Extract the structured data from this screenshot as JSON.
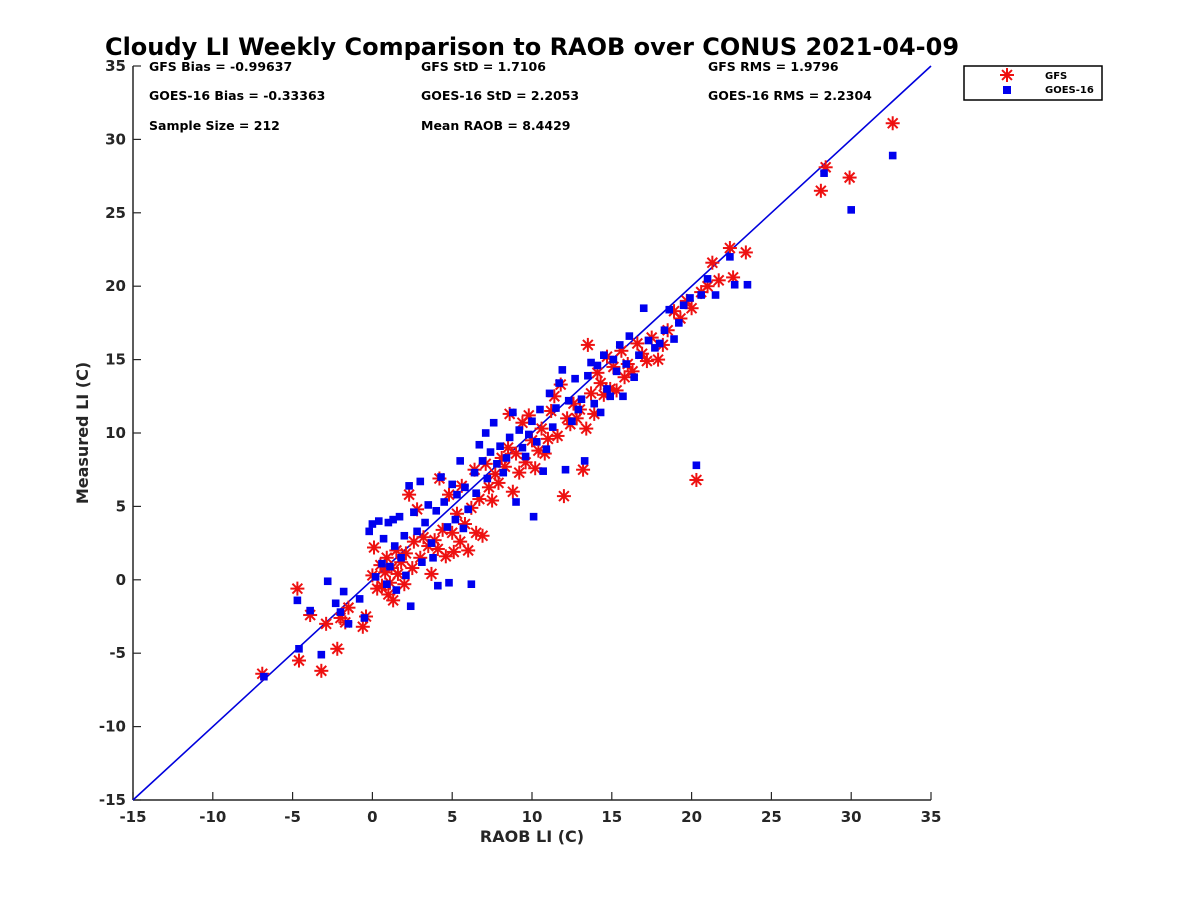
{
  "chart_data": {
    "type": "scatter",
    "title": "Cloudy LI Weekly Comparison to RAOB over CONUS 2021-04-09",
    "xlabel": "RAOB LI (C)",
    "ylabel": "Measured LI (C)",
    "xlim": [
      -15,
      35
    ],
    "ylim": [
      -15,
      35
    ],
    "xticks": [
      -15,
      -10,
      -5,
      0,
      5,
      10,
      15,
      20,
      25,
      30,
      35
    ],
    "yticks": [
      -15,
      -10,
      -5,
      0,
      5,
      10,
      15,
      20,
      25,
      30,
      35
    ],
    "grid": false,
    "legend_position": "top-right-outside",
    "reference_line": {
      "x": [
        -15,
        35
      ],
      "y": [
        -15,
        35
      ],
      "color": "#0000dd"
    },
    "stats": {
      "gfs_bias": "GFS Bias = -0.99637",
      "goes_bias": "GOES-16 Bias = -0.33363",
      "sample_size": "Sample Size = 212",
      "gfs_std": "GFS StD = 1.7106",
      "goes_std": "GOES-16 StD = 2.2053",
      "mean_raob": "Mean RAOB = 8.4429",
      "gfs_rms": "GFS RMS = 1.9796",
      "goes_rms": "GOES-16 RMS = 2.2304"
    },
    "series": [
      {
        "name": "GFS",
        "marker": "asterisk",
        "color": "#ee1111",
        "points": [
          [
            -6.9,
            -6.4
          ],
          [
            -4.7,
            -0.6
          ],
          [
            -4.6,
            -5.5
          ],
          [
            -3.9,
            -2.4
          ],
          [
            -3.2,
            -6.2
          ],
          [
            -2.9,
            -3.0
          ],
          [
            -2.2,
            -4.7
          ],
          [
            -2.0,
            -2.6
          ],
          [
            -1.7,
            -2.9
          ],
          [
            -1.5,
            -1.9
          ],
          [
            -0.6,
            -3.2
          ],
          [
            -0.4,
            -2.5
          ],
          [
            0.0,
            0.3
          ],
          [
            0.1,
            2.2
          ],
          [
            0.3,
            -0.6
          ],
          [
            0.5,
            1.0
          ],
          [
            0.6,
            -0.4
          ],
          [
            0.8,
            0.5
          ],
          [
            0.9,
            1.5
          ],
          [
            1.0,
            -1.0
          ],
          [
            1.1,
            -0.2
          ],
          [
            1.2,
            0.8
          ],
          [
            1.3,
            -1.4
          ],
          [
            1.5,
            2.0
          ],
          [
            1.6,
            0.4
          ],
          [
            1.8,
            1.2
          ],
          [
            2.0,
            -0.3
          ],
          [
            2.1,
            1.8
          ],
          [
            2.3,
            5.8
          ],
          [
            2.5,
            0.8
          ],
          [
            2.6,
            2.6
          ],
          [
            2.8,
            4.8
          ],
          [
            3.0,
            1.5
          ],
          [
            3.2,
            2.9
          ],
          [
            3.5,
            2.3
          ],
          [
            3.7,
            0.4
          ],
          [
            3.9,
            2.7
          ],
          [
            4.1,
            2.1
          ],
          [
            4.2,
            6.9
          ],
          [
            4.4,
            3.4
          ],
          [
            4.6,
            1.6
          ],
          [
            4.8,
            5.8
          ],
          [
            5.0,
            3.2
          ],
          [
            5.1,
            1.9
          ],
          [
            5.3,
            4.5
          ],
          [
            5.5,
            2.6
          ],
          [
            5.6,
            6.4
          ],
          [
            5.8,
            3.8
          ],
          [
            6.0,
            2.0
          ],
          [
            6.2,
            4.9
          ],
          [
            6.4,
            7.5
          ],
          [
            6.5,
            3.2
          ],
          [
            6.7,
            5.5
          ],
          [
            6.9,
            3.0
          ],
          [
            7.1,
            7.9
          ],
          [
            7.3,
            6.3
          ],
          [
            7.5,
            5.4
          ],
          [
            7.7,
            7.2
          ],
          [
            7.9,
            6.6
          ],
          [
            8.1,
            8.3
          ],
          [
            8.3,
            7.7
          ],
          [
            8.5,
            9.0
          ],
          [
            8.6,
            11.3
          ],
          [
            8.8,
            6.0
          ],
          [
            9.0,
            8.6
          ],
          [
            9.2,
            7.3
          ],
          [
            9.4,
            10.7
          ],
          [
            9.6,
            8.0
          ],
          [
            9.8,
            11.2
          ],
          [
            10.0,
            9.5
          ],
          [
            10.2,
            7.6
          ],
          [
            10.4,
            8.8
          ],
          [
            10.6,
            10.3
          ],
          [
            10.8,
            8.6
          ],
          [
            11.0,
            9.6
          ],
          [
            11.2,
            11.5
          ],
          [
            11.4,
            12.5
          ],
          [
            11.6,
            9.8
          ],
          [
            11.8,
            13.3
          ],
          [
            12.0,
            5.7
          ],
          [
            12.2,
            11.0
          ],
          [
            12.4,
            10.6
          ],
          [
            12.6,
            12.0
          ],
          [
            12.8,
            11.0
          ],
          [
            13.0,
            11.6
          ],
          [
            13.2,
            7.5
          ],
          [
            13.4,
            10.3
          ],
          [
            13.5,
            16.0
          ],
          [
            13.7,
            12.7
          ],
          [
            13.9,
            11.3
          ],
          [
            14.1,
            14.1
          ],
          [
            14.3,
            13.4
          ],
          [
            14.5,
            12.6
          ],
          [
            14.7,
            15.2
          ],
          [
            14.9,
            13.0
          ],
          [
            15.1,
            14.5
          ],
          [
            15.3,
            12.9
          ],
          [
            15.6,
            15.6
          ],
          [
            15.8,
            13.8
          ],
          [
            16.0,
            14.7
          ],
          [
            16.3,
            14.2
          ],
          [
            16.6,
            16.1
          ],
          [
            16.9,
            15.4
          ],
          [
            17.2,
            14.9
          ],
          [
            17.5,
            16.5
          ],
          [
            17.9,
            15.0
          ],
          [
            18.2,
            16.0
          ],
          [
            18.5,
            17.0
          ],
          [
            18.9,
            18.3
          ],
          [
            19.3,
            17.8
          ],
          [
            19.7,
            19.0
          ],
          [
            20.0,
            18.5
          ],
          [
            20.3,
            6.8
          ],
          [
            20.6,
            19.6
          ],
          [
            21.0,
            20.0
          ],
          [
            21.3,
            21.6
          ],
          [
            21.7,
            20.4
          ],
          [
            22.4,
            22.6
          ],
          [
            22.6,
            20.6
          ],
          [
            23.4,
            22.3
          ],
          [
            28.1,
            26.5
          ],
          [
            28.4,
            28.1
          ],
          [
            29.9,
            27.4
          ],
          [
            32.6,
            31.1
          ]
        ]
      },
      {
        "name": "GOES-16",
        "marker": "square",
        "color": "#0000ee",
        "points": [
          [
            -6.8,
            -6.6
          ],
          [
            -4.7,
            -1.4
          ],
          [
            -4.6,
            -4.7
          ],
          [
            -3.9,
            -2.1
          ],
          [
            -3.2,
            -5.1
          ],
          [
            -2.8,
            -0.1
          ],
          [
            -2.3,
            -1.6
          ],
          [
            -2.0,
            -2.2
          ],
          [
            -1.8,
            -0.8
          ],
          [
            -1.5,
            -3.0
          ],
          [
            -0.8,
            -1.3
          ],
          [
            -0.5,
            -2.6
          ],
          [
            -0.2,
            3.3
          ],
          [
            0.0,
            3.8
          ],
          [
            0.2,
            0.2
          ],
          [
            0.4,
            4.0
          ],
          [
            0.6,
            1.1
          ],
          [
            0.7,
            2.8
          ],
          [
            0.9,
            -0.3
          ],
          [
            1.0,
            3.9
          ],
          [
            1.1,
            0.9
          ],
          [
            1.3,
            4.1
          ],
          [
            1.4,
            2.3
          ],
          [
            1.5,
            -0.7
          ],
          [
            1.7,
            4.3
          ],
          [
            1.8,
            1.5
          ],
          [
            2.0,
            3.0
          ],
          [
            2.1,
            0.3
          ],
          [
            2.3,
            6.4
          ],
          [
            2.4,
            -1.8
          ],
          [
            2.6,
            4.6
          ],
          [
            2.8,
            3.3
          ],
          [
            3.0,
            6.7
          ],
          [
            3.1,
            1.2
          ],
          [
            3.3,
            3.9
          ],
          [
            3.5,
            5.1
          ],
          [
            3.7,
            2.5
          ],
          [
            3.8,
            1.5
          ],
          [
            4.0,
            4.7
          ],
          [
            4.1,
            -0.4
          ],
          [
            4.3,
            7.0
          ],
          [
            4.5,
            5.3
          ],
          [
            4.7,
            3.6
          ],
          [
            4.8,
            -0.2
          ],
          [
            5.0,
            6.5
          ],
          [
            5.2,
            4.1
          ],
          [
            5.3,
            5.8
          ],
          [
            5.5,
            8.1
          ],
          [
            5.7,
            3.5
          ],
          [
            5.8,
            6.3
          ],
          [
            6.0,
            4.8
          ],
          [
            6.2,
            -0.3
          ],
          [
            6.4,
            7.3
          ],
          [
            6.5,
            5.9
          ],
          [
            6.7,
            9.2
          ],
          [
            6.9,
            8.1
          ],
          [
            7.1,
            10.0
          ],
          [
            7.2,
            6.9
          ],
          [
            7.4,
            8.7
          ],
          [
            7.6,
            10.7
          ],
          [
            7.8,
            7.9
          ],
          [
            8.0,
            9.1
          ],
          [
            8.2,
            7.3
          ],
          [
            8.4,
            8.3
          ],
          [
            8.6,
            9.7
          ],
          [
            8.8,
            11.4
          ],
          [
            9.0,
            5.3
          ],
          [
            9.2,
            10.2
          ],
          [
            9.4,
            9.0
          ],
          [
            9.6,
            8.4
          ],
          [
            9.8,
            9.9
          ],
          [
            10.0,
            10.8
          ],
          [
            10.1,
            4.3
          ],
          [
            10.3,
            9.4
          ],
          [
            10.5,
            11.6
          ],
          [
            10.7,
            7.4
          ],
          [
            10.9,
            8.9
          ],
          [
            11.1,
            12.7
          ],
          [
            11.3,
            10.4
          ],
          [
            11.5,
            11.7
          ],
          [
            11.7,
            13.4
          ],
          [
            11.9,
            14.3
          ],
          [
            12.1,
            7.5
          ],
          [
            12.3,
            12.2
          ],
          [
            12.5,
            10.8
          ],
          [
            12.7,
            13.7
          ],
          [
            12.9,
            11.6
          ],
          [
            13.1,
            12.3
          ],
          [
            13.3,
            8.1
          ],
          [
            13.5,
            13.9
          ],
          [
            13.7,
            14.8
          ],
          [
            13.9,
            12.0
          ],
          [
            14.1,
            14.6
          ],
          [
            14.3,
            11.4
          ],
          [
            14.5,
            15.3
          ],
          [
            14.7,
            13.0
          ],
          [
            14.9,
            12.5
          ],
          [
            15.1,
            15.0
          ],
          [
            15.3,
            14.2
          ],
          [
            15.5,
            16.0
          ],
          [
            15.7,
            12.5
          ],
          [
            15.9,
            14.7
          ],
          [
            16.1,
            16.6
          ],
          [
            16.4,
            13.8
          ],
          [
            16.7,
            15.3
          ],
          [
            17.0,
            18.5
          ],
          [
            17.3,
            16.3
          ],
          [
            17.7,
            15.8
          ],
          [
            18.0,
            16.1
          ],
          [
            18.3,
            17.0
          ],
          [
            18.6,
            18.4
          ],
          [
            18.9,
            16.4
          ],
          [
            19.2,
            17.5
          ],
          [
            19.5,
            18.7
          ],
          [
            19.9,
            19.2
          ],
          [
            20.3,
            7.8
          ],
          [
            20.6,
            19.4
          ],
          [
            21.0,
            20.5
          ],
          [
            21.5,
            19.4
          ],
          [
            22.4,
            22.0
          ],
          [
            22.7,
            20.1
          ],
          [
            23.5,
            20.1
          ],
          [
            28.3,
            27.7
          ],
          [
            30.0,
            25.2
          ],
          [
            32.6,
            28.9
          ]
        ]
      }
    ]
  }
}
